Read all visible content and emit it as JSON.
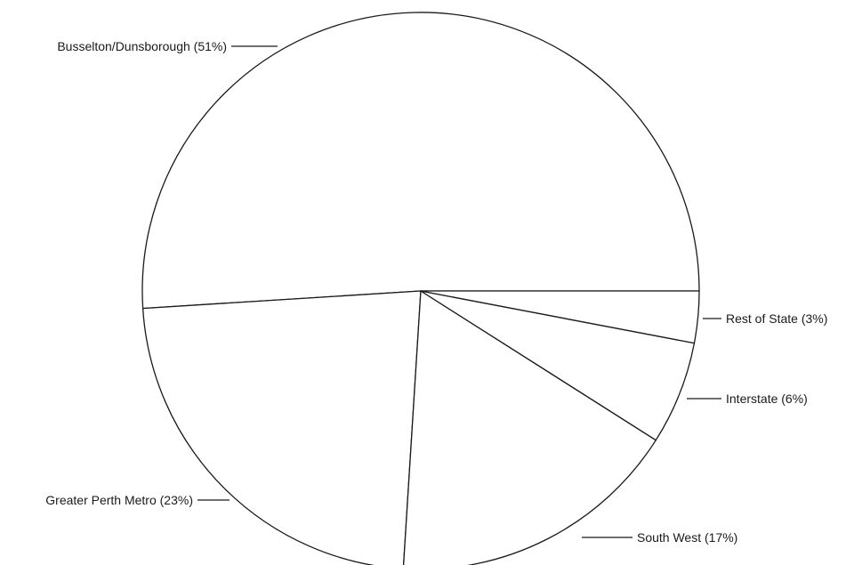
{
  "chart_data": {
    "type": "pie",
    "title": "",
    "slices": [
      {
        "label": "Busselton/Dunsborough (51%)",
        "name": "Busselton/Dunsborough",
        "value": 51
      },
      {
        "label": "Greater Perth Metro (23%)",
        "name": "Greater Perth Metro",
        "value": 23
      },
      {
        "label": "South West (17%)",
        "name": "South West",
        "value": 17
      },
      {
        "label": "Interstate (6%)",
        "name": "Interstate",
        "value": 6
      },
      {
        "label": "Rest of State (3%)",
        "name": "Rest of State",
        "value": 3
      }
    ],
    "slice_fill": "#ffffff",
    "stroke_color": "#1a1a1a",
    "legend": "none"
  }
}
